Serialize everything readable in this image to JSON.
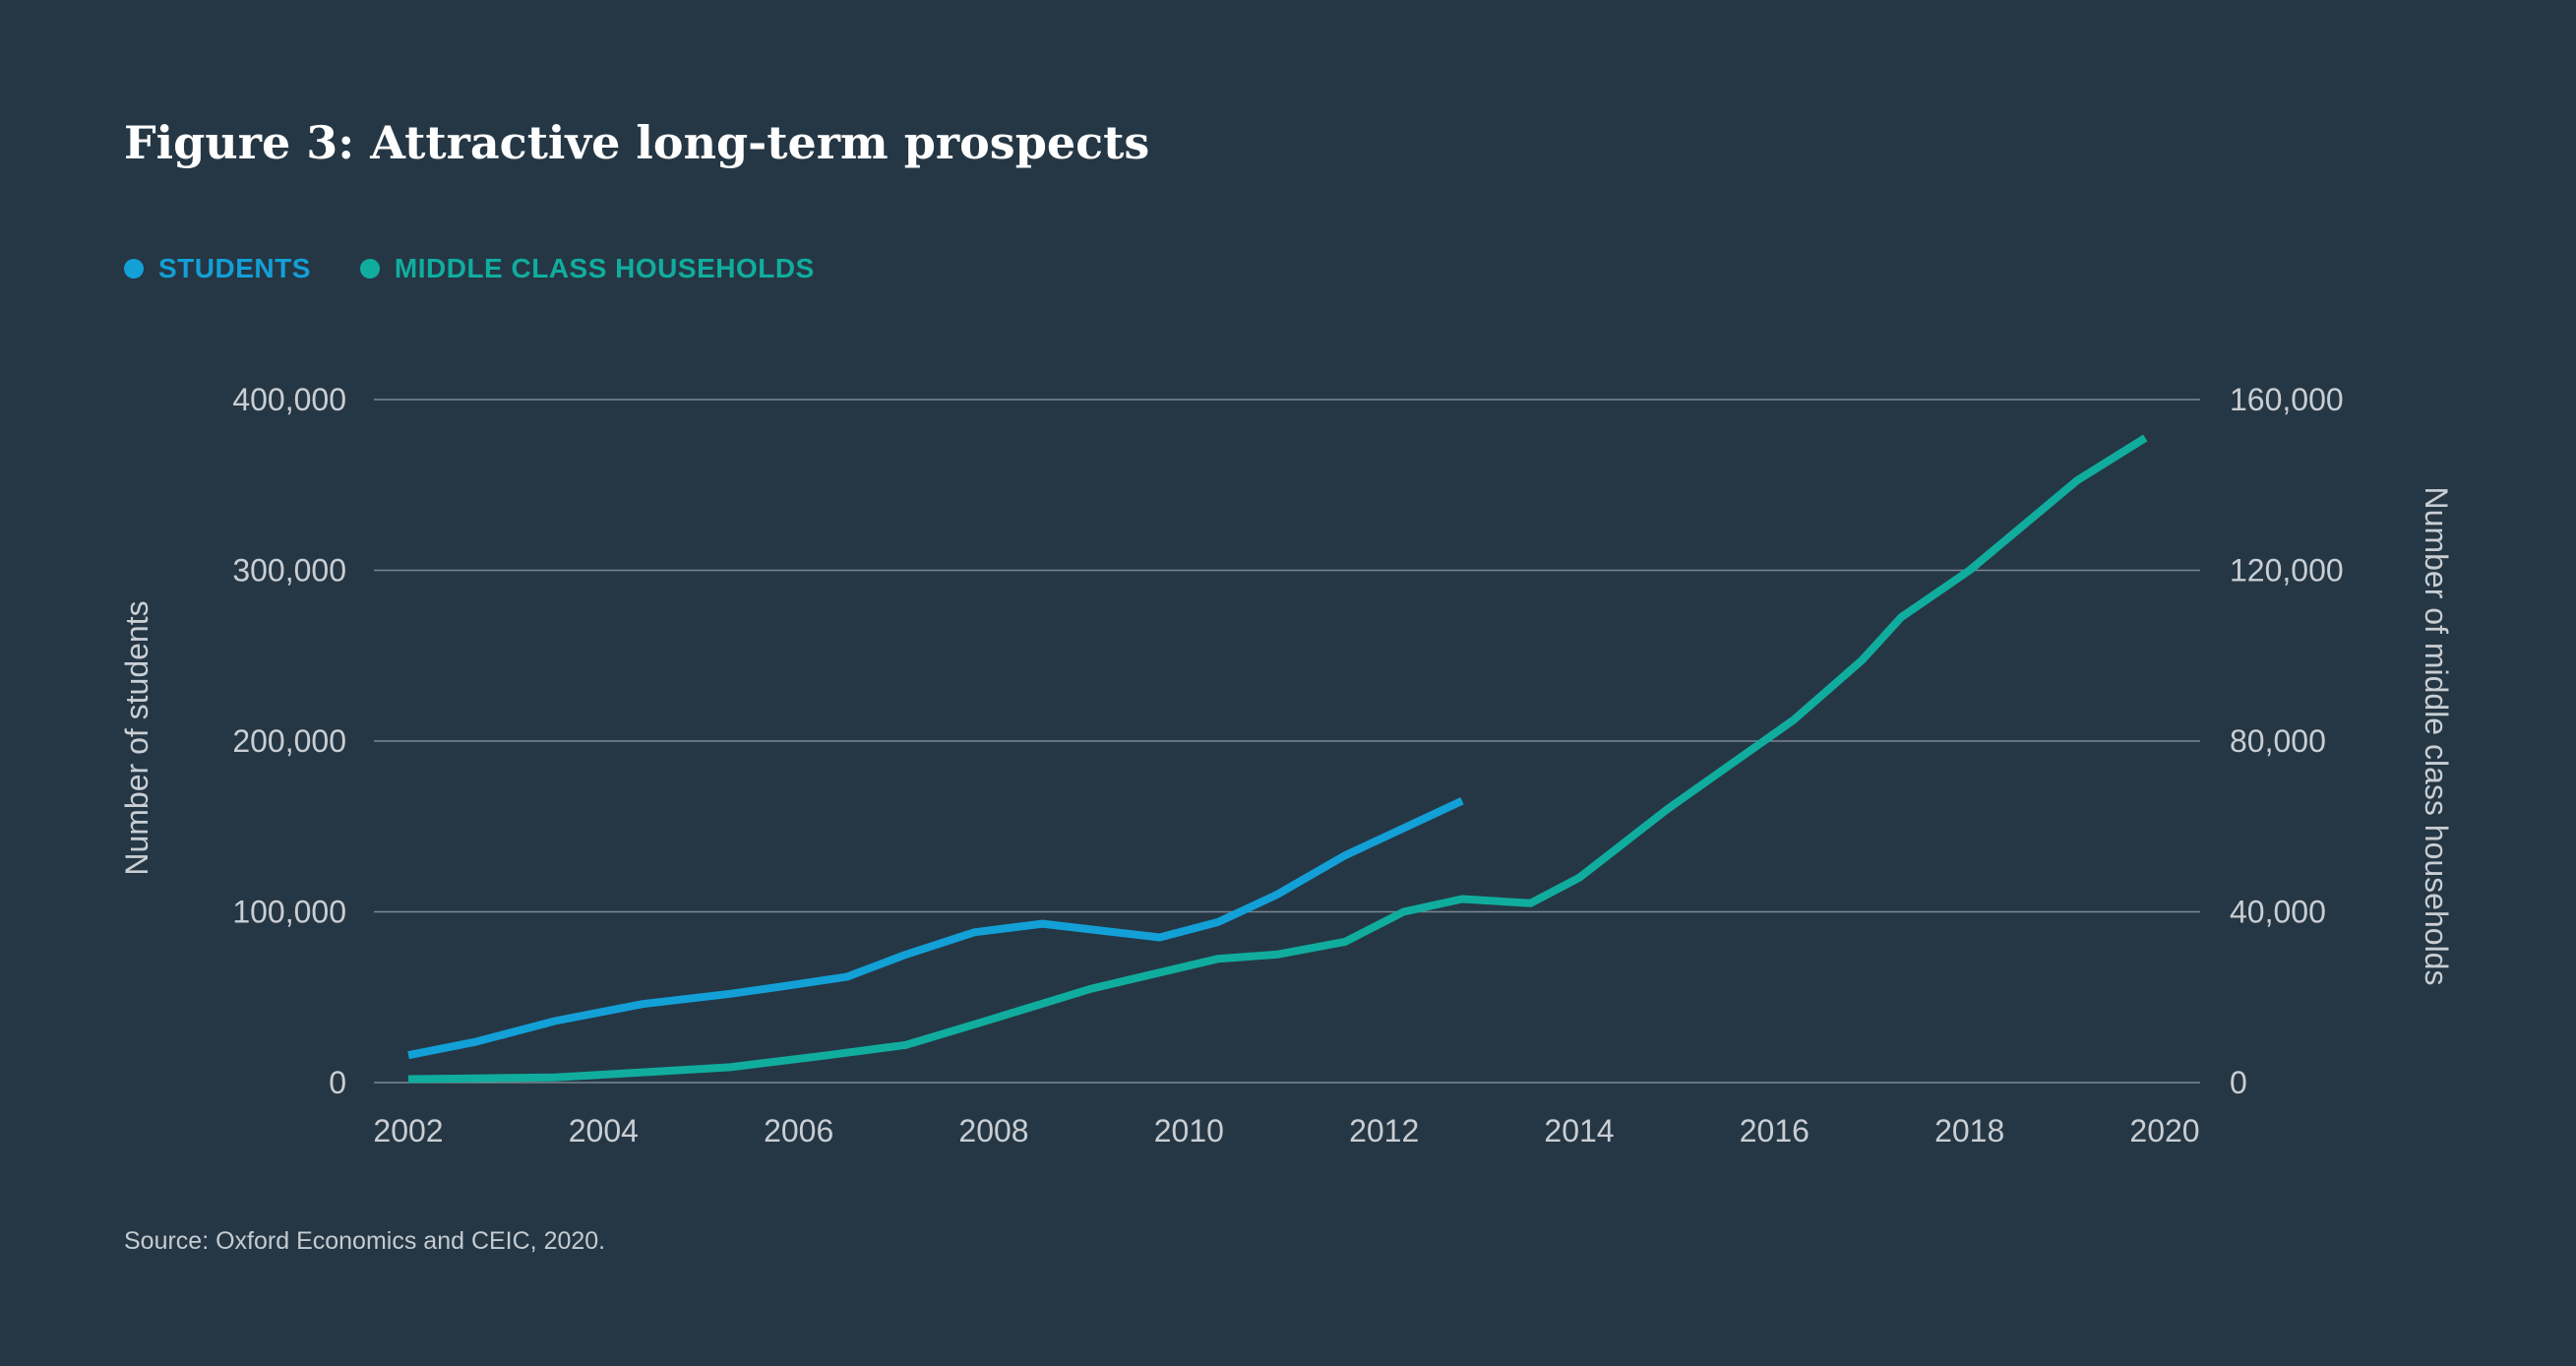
{
  "figure": {
    "title": "Figure 3: Attractive long-term prospects",
    "source": "Source: Oxford Economics and CEIC, 2020."
  },
  "colors": {
    "background": "#253745",
    "students": "#12a0d7",
    "households": "#10ad9e",
    "grid": "#7a8791",
    "text": "#c9ced3"
  },
  "chart_data": {
    "type": "line",
    "title": "Figure 3: Attractive long-term prospects",
    "xlabel": "",
    "ylabel": "Number of students",
    "y2label": "Number of middle class households",
    "xlim": [
      2002,
      2020
    ],
    "ylim": [
      0,
      400000
    ],
    "y2lim": [
      0,
      160000
    ],
    "x_ticks": [
      "2002",
      "2004",
      "2006",
      "2008",
      "2010",
      "2012",
      "2014",
      "2016",
      "2018",
      "2020"
    ],
    "y_ticks": [
      "0",
      "100,000",
      "200,000",
      "300,000",
      "400,000"
    ],
    "y2_ticks": [
      "0",
      "40,000",
      "80,000",
      "120,000",
      "160,000"
    ],
    "grid": true,
    "legend_position": "top-left",
    "series": [
      {
        "name": "STUDENTS",
        "axis": "left",
        "color": "#12a0d7",
        "x": [
          2002,
          2002.7,
          2003.5,
          2004.4,
          2005.3,
          2005.8,
          2006.5,
          2007.1,
          2007.8,
          2008.5,
          2009.1,
          2009.7,
          2010.3,
          2010.9,
          2011.6,
          2012.2,
          2012.8
        ],
        "values": [
          16000,
          24000,
          36000,
          46000,
          52000,
          56000,
          62000,
          75000,
          88000,
          93000,
          89000,
          85000,
          94000,
          110000,
          133000,
          149000,
          165000
        ]
      },
      {
        "name": "MIDDLE CLASS HOUSEHOLDS",
        "axis": "right",
        "color": "#10ad9e",
        "x": [
          2002,
          2002.7,
          2003.5,
          2004.4,
          2005.3,
          2006.3,
          2007.1,
          2008,
          2009,
          2010.3,
          2010.9,
          2011.6,
          2012.2,
          2012.8,
          2013.5,
          2014,
          2014.9,
          2016.2,
          2016.9,
          2017.3,
          2018,
          2019.1,
          2019.8
        ],
        "values": [
          800,
          1000,
          1200,
          2400,
          3600,
          6400,
          8800,
          15000,
          22000,
          29000,
          30000,
          33000,
          40000,
          43000,
          42000,
          48000,
          64000,
          85000,
          99000,
          109000,
          120000,
          141000,
          151000
        ]
      }
    ]
  }
}
